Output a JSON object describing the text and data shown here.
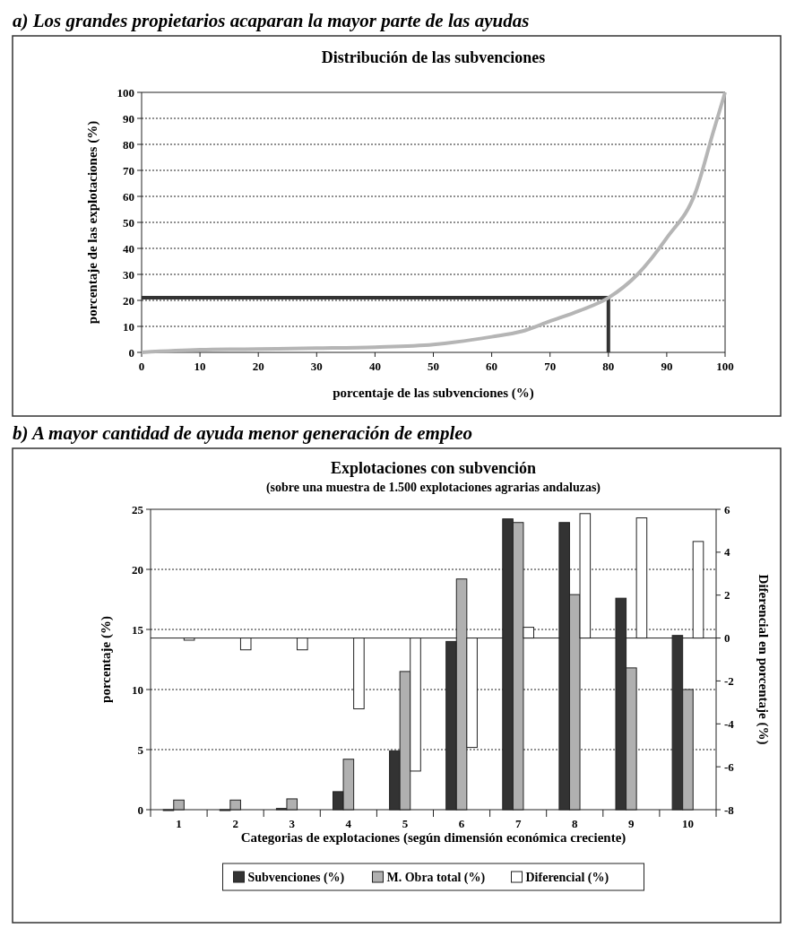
{
  "chart_data": [
    {
      "type": "line",
      "title": "a) Los grandes propietarios acaparan la mayor parte de las ayudas",
      "subtitle": "Distribución de las subvenciones",
      "xlabel": "porcentaje de las subvenciones (%)",
      "ylabel": "porcentaje de las explotaciones (%)",
      "x": [
        0,
        10,
        20,
        30,
        40,
        50,
        60,
        65,
        70,
        75,
        80,
        85,
        90,
        95,
        98,
        100
      ],
      "series": [
        {
          "color": "#b5b5b5",
          "values": [
            0,
            1,
            1.3,
            1.6,
            2,
            3,
            6,
            8,
            12,
            16,
            21,
            30,
            44,
            62,
            85,
            100
          ]
        }
      ],
      "xlim": [
        0,
        100
      ],
      "xticks": [
        0,
        10,
        20,
        30,
        40,
        50,
        60,
        70,
        80,
        90,
        100
      ],
      "ylim": [
        0,
        100
      ],
      "yticks": [
        0,
        10,
        20,
        30,
        40,
        50,
        60,
        70,
        80,
        90,
        100
      ],
      "ref_lines": [
        {
          "axis": "x",
          "value": 80,
          "color": "#333333"
        },
        {
          "axis": "y",
          "value": 21,
          "color": "#333333"
        }
      ],
      "grid": "y",
      "marker": "none",
      "line_style": "solid"
    },
    {
      "type": "bar",
      "title": "Explotaciones con subvención",
      "subtitle": "(sobre una muestra de 1.500 explotaciones agrarias andaluzas)",
      "xlabel": "Categorias de explotaciones (según dimensión económica creciente)",
      "ylabel": "porcentaje (%)",
      "y2label": "Diferencial en porcentaje (%)",
      "annotations": [
        "b) A mayor cantidad de ayuda menor generación de empleo"
      ],
      "categories": [
        "1",
        "2",
        "3",
        "4",
        "5",
        "6",
        "7",
        "8",
        "9",
        "10"
      ],
      "series": [
        {
          "name": "Subvenciones (%)",
          "color": "#333333",
          "values": [
            0,
            0,
            0.1,
            1.5,
            4.9,
            14,
            24.2,
            23.9,
            17.6,
            14.5
          ]
        },
        {
          "name": "M. Obra total (%)",
          "color": "#b0b0b0",
          "values": [
            0.8,
            0.8,
            0.9,
            4.2,
            11.5,
            19.2,
            23.9,
            17.9,
            11.8,
            10
          ]
        },
        {
          "name": "Diferencial (%)",
          "color": "#ffffff",
          "axis": "y2",
          "values": [
            -0.1,
            -0.55,
            -0.55,
            -3.3,
            -6.2,
            -5.1,
            0.5,
            5.8,
            5.6,
            4.5
          ]
        }
      ],
      "ylim": [
        0,
        25
      ],
      "yticks": [
        0,
        5,
        10,
        15,
        20,
        25
      ],
      "y2lim": [
        -8,
        6
      ],
      "y2ticks": [
        -8,
        -6,
        -4,
        -2,
        0,
        2,
        4,
        6
      ],
      "grid": "y",
      "legend": "bottom"
    }
  ]
}
